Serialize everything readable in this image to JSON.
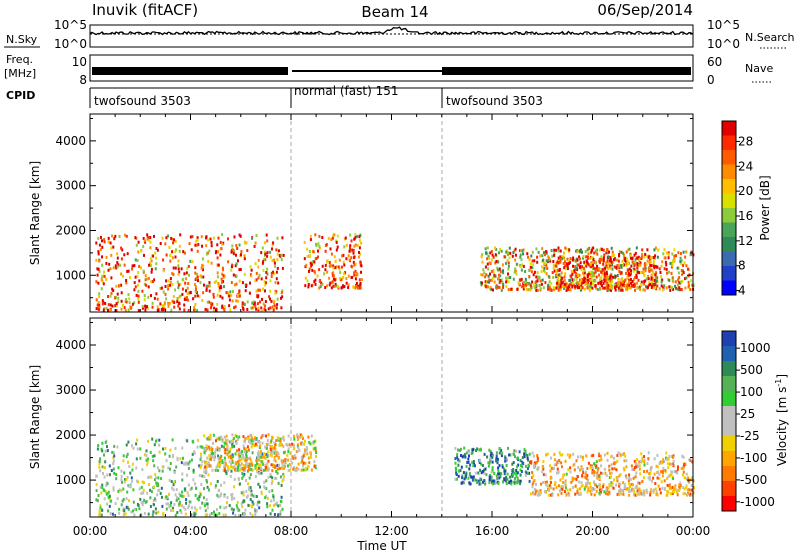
{
  "header": {
    "station": "Inuvik (fitACF)",
    "beam": "Beam 14",
    "date": "06/Sep/2014"
  },
  "noise_panel": {
    "left_label": "N.Sky",
    "left_ticks": [
      "10^5",
      "10^0"
    ],
    "right_ticks": [
      "10^5",
      "10^0"
    ],
    "right_label": "N.Search"
  },
  "freq_panel": {
    "left_label_top": "Freq.",
    "left_label_bottom": "[MHz]",
    "left_ticks": [
      "10",
      "8"
    ],
    "right_ticks": [
      "60",
      "0"
    ],
    "right_label": "Nave"
  },
  "cpid_panel": {
    "label": "CPID",
    "segments": [
      {
        "name": "twofsound 3503",
        "start": 0,
        "end": 8
      },
      {
        "name": "normal (fast) 151",
        "start": 8,
        "end": 14
      },
      {
        "name": "twofsound 3503",
        "start": 14,
        "end": 24
      }
    ]
  },
  "x_axis": {
    "label": "Time UT",
    "ticks": [
      "00:00",
      "04:00",
      "08:00",
      "12:00",
      "16:00",
      "20:00",
      "00:00"
    ]
  },
  "power_colorbar": {
    "label": "Power [dB]",
    "ticks": [
      "28",
      "24",
      "20",
      "16",
      "12",
      "8",
      "4"
    ],
    "colors": [
      "#e00000",
      "#ff2a00",
      "#ff5a00",
      "#ff8c00",
      "#ffbe00",
      "#d9e000",
      "#8ccc3c",
      "#4aa55a",
      "#2e8b57",
      "#3c6ab0",
      "#2040c8",
      "#0000ff"
    ]
  },
  "velocity_colorbar": {
    "label_main": "Velocity",
    "label_units": "[m s",
    "label_exp": "-1",
    "label_close": "]",
    "ticks": [
      "1000",
      "500",
      "100",
      "25",
      "-25",
      "-100",
      "-500",
      "-1000"
    ],
    "colors": [
      "#2040b0",
      "#2060b0",
      "#2e8b57",
      "#55b255",
      "#32cd32",
      "#c0c0c0",
      "#c0c0c0",
      "#f0d000",
      "#ffa500",
      "#ff7a00",
      "#ff4000",
      "#ff0000"
    ]
  },
  "chart_data": [
    {
      "type": "heatmap",
      "title": "Power",
      "ylabel": "Slant Range [km]",
      "xlabel": "",
      "x_range_hours_ut": [
        0,
        24
      ],
      "ylim": [
        180,
        4600
      ],
      "y_ticks": [
        1000,
        2000,
        3000,
        4000
      ],
      "cbar_range": [
        0,
        30
      ],
      "scatter_regions": [
        {
          "t_start": 0.2,
          "t_end": 7.7,
          "range_low": 200,
          "range_high": 1900,
          "typical": 24
        },
        {
          "t_start": 8.5,
          "t_end": 10.8,
          "range_low": 700,
          "range_high": 1900,
          "typical": 24
        },
        {
          "t_start": 15.5,
          "t_end": 24.0,
          "range_low": 650,
          "range_high": 1600,
          "typical": 20
        },
        {
          "t_start": 18.5,
          "t_end": 22.5,
          "range_low": 700,
          "range_high": 1400,
          "typical": 26
        }
      ]
    },
    {
      "type": "heatmap",
      "title": "Velocity",
      "ylabel": "Slant Range [km]",
      "xlabel": "Time UT",
      "x_range_hours_ut": [
        0,
        24
      ],
      "ylim": [
        180,
        4600
      ],
      "y_ticks": [
        1000,
        2000,
        3000,
        4000
      ],
      "cbar_range": [
        -1000,
        1000
      ],
      "scatter_regions": [
        {
          "t_start": 0.2,
          "t_end": 7.7,
          "range_low": 200,
          "range_high": 1900,
          "typical": 200
        },
        {
          "t_start": 4.5,
          "t_end": 9.0,
          "range_low": 1200,
          "range_high": 2000,
          "typical": -200
        },
        {
          "t_start": 14.5,
          "t_end": 17.5,
          "range_low": 900,
          "range_high": 1700,
          "typical": 600
        },
        {
          "t_start": 17.5,
          "t_end": 24.0,
          "range_low": 650,
          "range_high": 1600,
          "typical": -300
        }
      ]
    }
  ]
}
